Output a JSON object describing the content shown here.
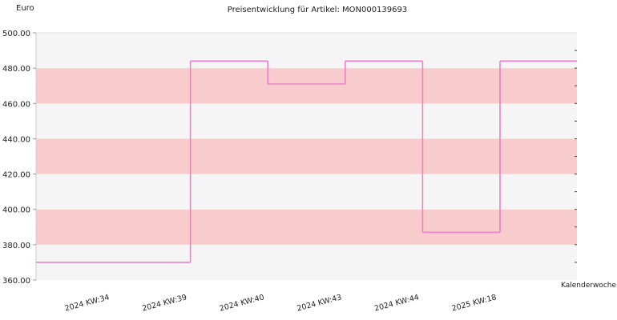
{
  "chart_data": {
    "type": "step",
    "title": "Preisentwicklung für Artikel: MON000139693",
    "y_label": "Euro",
    "x_label": "Kalenderwoche",
    "categories": [
      "2024 KW:34",
      "2024 KW:39",
      "2024 KW:40",
      "2024 KW:43",
      "2024 KW:44",
      "2025 KW:18"
    ],
    "values": [
      370,
      484,
      471,
      484,
      387,
      484
    ],
    "color": "#ee7fcb",
    "ylim": [
      360,
      500
    ],
    "yticks": [
      {
        "value": 360,
        "label": "360.00"
      },
      {
        "value": 380,
        "label": "380.00"
      },
      {
        "value": 400,
        "label": "400.00"
      },
      {
        "value": 420,
        "label": "420.00"
      },
      {
        "value": 440,
        "label": "440.00"
      },
      {
        "value": 460,
        "label": "460.00"
      },
      {
        "value": 480,
        "label": "480.00"
      },
      {
        "value": 500,
        "label": "500.00"
      }
    ],
    "right_ticks": [
      370,
      380,
      390,
      400,
      410,
      420,
      430,
      440,
      450,
      460,
      470,
      480,
      490
    ],
    "band_colors": [
      "#f5f5f5",
      "#f8cccc"
    ]
  }
}
